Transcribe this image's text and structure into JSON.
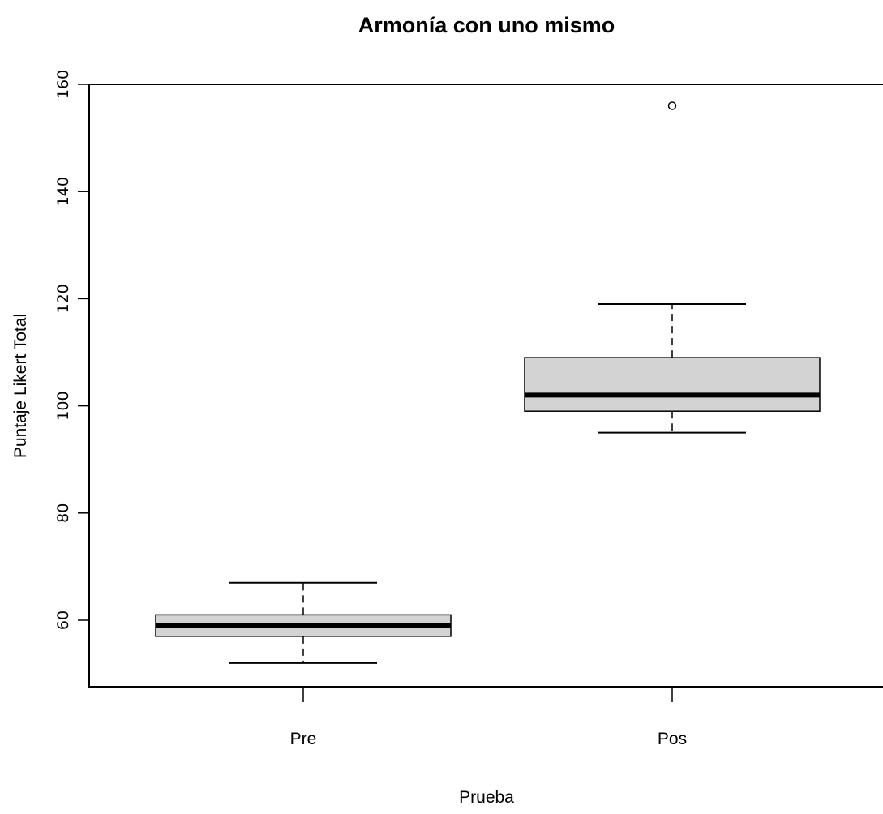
{
  "chart_data": {
    "type": "box",
    "title": "Armonía con uno mismo",
    "xlabel": "Prueba",
    "ylabel": "Puntaje Likert Total",
    "categories": [
      "Pre",
      "Pos"
    ],
    "ylim": [
      48,
      160
    ],
    "yticks": [
      60,
      80,
      100,
      120,
      140,
      160
    ],
    "grid": false,
    "boxes": [
      {
        "category": "Pre",
        "whisker_low": 52,
        "q1": 57,
        "median": 59,
        "q3": 61,
        "whisker_high": 67,
        "outliers": []
      },
      {
        "category": "Pos",
        "whisker_low": 95,
        "q1": 99,
        "median": 102,
        "q3": 109,
        "whisker_high": 119,
        "outliers": [
          156
        ]
      }
    ],
    "colors": {
      "box_fill": "#d3d3d3",
      "stroke": "#000000"
    }
  }
}
